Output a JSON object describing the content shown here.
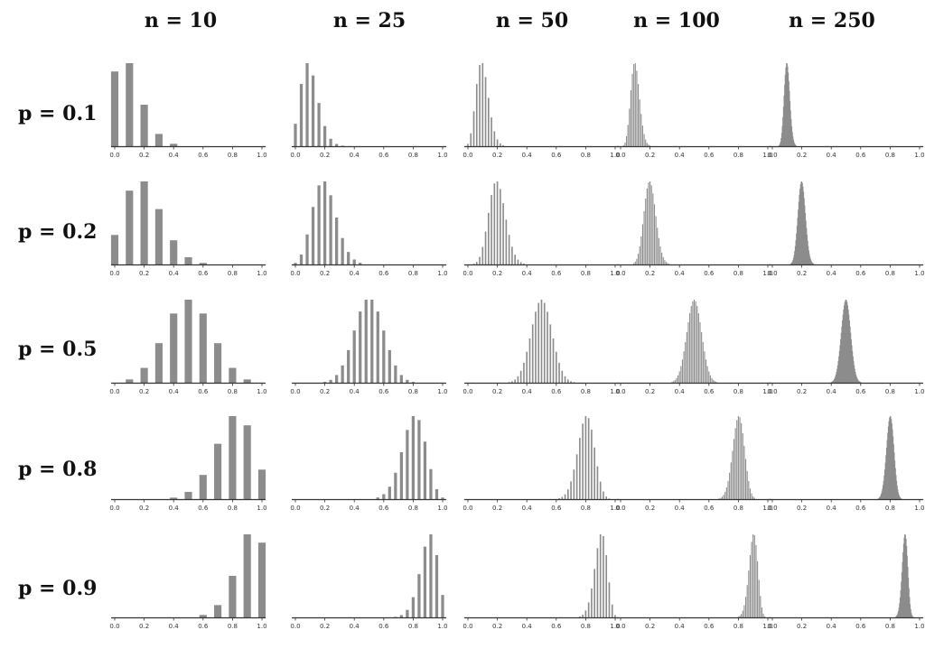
{
  "chart_data": {
    "type": "bar",
    "description_free": true,
    "col_labels": [
      "n = 10",
      "n = 25",
      "n = 50",
      "n = 100",
      "n = 250"
    ],
    "row_labels": [
      "p = 0.1",
      "p = 0.2",
      "p = 0.5",
      "p = 0.8",
      "p = 0.9"
    ],
    "n_values": [
      10,
      25,
      50,
      100,
      250
    ],
    "p_values": [
      0.1,
      0.2,
      0.5,
      0.8,
      0.9
    ],
    "xlim": [
      0,
      1
    ],
    "x_tick_labels": [
      "0.0",
      "0.2",
      "0.4",
      "0.6",
      "0.8",
      "1.0"
    ],
    "bar_color": "#8c8c8c",
    "axis_color": "#333333"
  }
}
